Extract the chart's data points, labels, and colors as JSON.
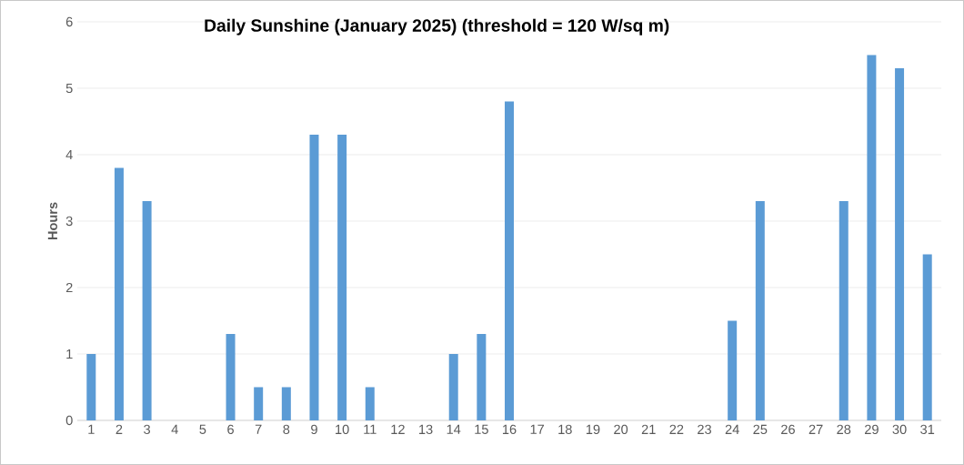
{
  "chart_data": {
    "type": "bar",
    "title": "Daily Sunshine (January 2025) (threshold = 120 W/sq m)",
    "ylabel": "Hours",
    "categories": [
      "1",
      "2",
      "3",
      "4",
      "5",
      "6",
      "7",
      "8",
      "9",
      "10",
      "11",
      "12",
      "13",
      "14",
      "15",
      "16",
      "17",
      "18",
      "19",
      "20",
      "21",
      "22",
      "23",
      "24",
      "25",
      "26",
      "27",
      "28",
      "29",
      "30",
      "31"
    ],
    "values": [
      1,
      3.8,
      3.3,
      0,
      0,
      1.3,
      0.5,
      0.5,
      4.3,
      4.3,
      0.5,
      0,
      0,
      1,
      1.3,
      4.8,
      0,
      0,
      0,
      0,
      0,
      0,
      0,
      1.5,
      3.3,
      0,
      0,
      3.3,
      5.5,
      5.3,
      2.5
    ],
    "color": "#5b9bd5",
    "ylim": [
      0,
      6
    ],
    "yticks": [
      0,
      1,
      2,
      3,
      4,
      5,
      6
    ],
    "grid": "y"
  }
}
